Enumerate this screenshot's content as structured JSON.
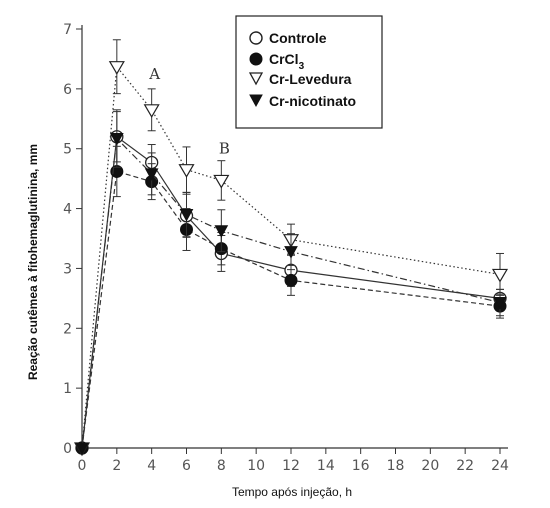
{
  "chart_data": {
    "type": "line",
    "title": "",
    "xlabel": "Tempo após injeção, h",
    "ylabel": "Reação cutêmea à fitohemaglutinina, mm",
    "xlim": [
      0,
      24
    ],
    "ylim": [
      0,
      7
    ],
    "xticks": [
      0,
      2,
      4,
      6,
      8,
      10,
      12,
      14,
      16,
      18,
      20,
      22,
      24
    ],
    "yticks": [
      0,
      1,
      2,
      3,
      4,
      5,
      6,
      7
    ],
    "grid": false,
    "legend_position": "top-right",
    "series": [
      {
        "name": "Controle",
        "marker": "open-circle",
        "line_style": "solid",
        "x": [
          0,
          2,
          4,
          6,
          8,
          12,
          24
        ],
        "y": [
          0,
          5.2,
          4.77,
          3.88,
          3.25,
          2.97,
          2.5
        ],
        "err": [
          0,
          0.42,
          0.3,
          0.36,
          0.3,
          0.27,
          0.15
        ]
      },
      {
        "name": "CrCl3",
        "marker": "filled-circle",
        "line_style": "dashed",
        "x": [
          0,
          2,
          4,
          6,
          8,
          12,
          24
        ],
        "y": [
          0,
          4.62,
          4.45,
          3.65,
          3.33,
          2.8,
          2.37
        ],
        "err": [
          0,
          0.42,
          0.3,
          0.35,
          0.27,
          0.25,
          0.2
        ]
      },
      {
        "name": "Cr-Levedura",
        "marker": "open-triangle-down",
        "line_style": "dotted",
        "x": [
          0,
          2,
          4,
          6,
          8,
          12,
          24
        ],
        "y": [
          0,
          6.37,
          5.65,
          4.65,
          4.47,
          3.48,
          2.9
        ],
        "err": [
          0,
          0.45,
          0.35,
          0.38,
          0.33,
          0.26,
          0.35
        ]
      },
      {
        "name": "Cr-nicotinato",
        "marker": "filled-triangle-down",
        "line_style": "dashdot",
        "x": [
          0,
          2,
          4,
          6,
          8,
          12,
          24
        ],
        "y": [
          0,
          5.17,
          4.58,
          3.9,
          3.63,
          3.28,
          2.43
        ],
        "err": [
          0,
          0.48,
          0.35,
          0.37,
          0.35,
          0.3,
          0.22
        ]
      }
    ],
    "legend": {
      "controle": "Controle",
      "crcl_base": "CrCl",
      "crcl_sub": "3",
      "levedura": "Cr-Levedura",
      "nicotinato": "Cr-nicotinato"
    },
    "annotations": [
      {
        "text": "A",
        "x": 4,
        "y": 6.25
      },
      {
        "text": "B",
        "x": 8,
        "y": 5.0
      }
    ]
  }
}
